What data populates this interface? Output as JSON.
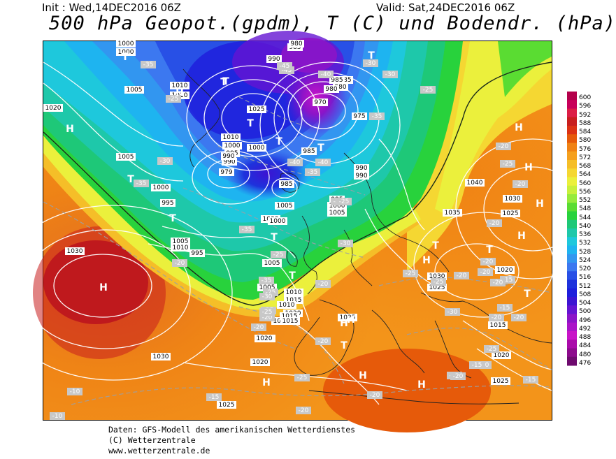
{
  "header": {
    "init": "Init : Wed,14DEC2016 06Z",
    "valid": "Valid: Sat,24DEC2016 06Z",
    "title": "500 hPa Geopot.(gpdm), T (C) und Bodendr. (hPa)"
  },
  "scale": {
    "values": [
      "600",
      "596",
      "592",
      "588",
      "584",
      "580",
      "576",
      "572",
      "568",
      "564",
      "560",
      "556",
      "552",
      "548",
      "544",
      "540",
      "536",
      "532",
      "528",
      "524",
      "520",
      "516",
      "512",
      "508",
      "504",
      "500",
      "496",
      "492",
      "488",
      "484",
      "480",
      "476"
    ],
    "colors": [
      "#b4004b",
      "#c8005a",
      "#dc1e46",
      "#c81e1e",
      "#dc3214",
      "#e65a0a",
      "#f08214",
      "#f5a01e",
      "#f5be28",
      "#f5d732",
      "#ebf03c",
      "#c8f03c",
      "#96eb3c",
      "#5adc32",
      "#28d23c",
      "#1ec878",
      "#1ec8aa",
      "#1ec8dc",
      "#1eb4f0",
      "#3296f0",
      "#3c78f0",
      "#2850e6",
      "#1e32dc",
      "#1e1edc",
      "#3c14d2",
      "#6414d2",
      "#8c14c8",
      "#aa14c8",
      "#c814c8",
      "#aa0aaa",
      "#8c0a8c",
      "#6e0a6e"
    ]
  },
  "map": {
    "pressure_labels": [
      "1000",
      "1000",
      "1005",
      "1010",
      "1010",
      "1020",
      "1025",
      "1010",
      "1000",
      "995",
      "990",
      "979",
      "1005",
      "1000",
      "995",
      "1000",
      "1005",
      "1010",
      "995",
      "1000",
      "1005",
      "1010",
      "1015",
      "1020",
      "1025",
      "1030",
      "1030",
      "1025",
      "1040",
      "1035",
      "1030",
      "1025",
      "1030",
      "1025",
      "1015",
      "1020",
      "1025",
      "1020",
      "1015",
      "1005",
      "1010",
      "1015",
      "1020",
      "990",
      "985",
      "980",
      "975",
      "970",
      "985",
      "980",
      "990",
      "985",
      "995",
      "1000",
      "1005",
      "1005",
      "1015",
      "1020",
      "990",
      "1025",
      "1000",
      "990",
      "985",
      "980",
      "985"
    ],
    "temperature_labels": [
      "-35",
      "-25",
      "-30",
      "-35",
      "-40",
      "-45",
      "-45",
      "-40",
      "-30",
      "-30",
      "-25",
      "-35",
      "-40",
      "-35",
      "-35",
      "-30",
      "-25",
      "-25",
      "-35",
      "-30",
      "-25",
      "-20",
      "-35",
      "-25",
      "-20",
      "-20",
      "-20",
      "-20",
      "-25",
      "-20",
      "-20",
      "-20",
      "-25",
      "-20",
      "-15",
      "-20",
      "-25",
      "-20",
      "-20",
      "-15",
      "-10",
      "-15",
      "-15",
      "-10",
      "-10",
      "-15",
      "-20",
      "-20",
      "-20",
      "-25",
      "-25",
      "-20",
      "-15",
      "-20",
      "-30",
      "-25"
    ],
    "high_label": "H",
    "low_label": "T"
  },
  "footer": {
    "line1": "Daten: GFS-Modell des amerikanischen Wetterdienstes",
    "line2": "(C) Wetterzentrale",
    "line3": "www.wetterzentrale.de"
  }
}
